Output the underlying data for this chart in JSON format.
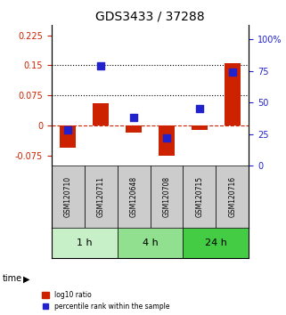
{
  "title": "GDS3433 / 37288",
  "samples": [
    "GSM120710",
    "GSM120711",
    "GSM120648",
    "GSM120708",
    "GSM120715",
    "GSM120716"
  ],
  "groups": [
    {
      "label": "1 h",
      "indices": [
        0,
        1
      ],
      "color": "#c8f0c8"
    },
    {
      "label": "4 h",
      "indices": [
        2,
        3
      ],
      "color": "#90e090"
    },
    {
      "label": "24 h",
      "indices": [
        4,
        5
      ],
      "color": "#44cc44"
    }
  ],
  "log10_ratio": [
    -0.055,
    0.055,
    -0.018,
    -0.075,
    -0.012,
    0.155
  ],
  "percentile_rank": [
    0.28,
    0.79,
    0.38,
    0.22,
    0.45,
    0.74
  ],
  "ylim_left": [
    -0.1,
    0.25
  ],
  "ylim_right": [
    0.0,
    1.111
  ],
  "yticks_left": [
    -0.075,
    0.0,
    0.075,
    0.15,
    0.225
  ],
  "ytick_labels_left": [
    "-0.075",
    "0",
    "0.075",
    "0.15",
    "0.225"
  ],
  "yticks_right": [
    0.0,
    0.25,
    0.5,
    0.75,
    1.0
  ],
  "ytick_labels_right": [
    "0",
    "25",
    "50",
    "75",
    "100%"
  ],
  "hlines": [
    0.075,
    0.15
  ],
  "bar_color": "#cc2200",
  "dot_color": "#2222cc",
  "zero_line_color": "#cc2200",
  "bar_width": 0.5,
  "sample_box_color": "#cccccc",
  "legend_bar_label": "log10 ratio",
  "legend_dot_label": "percentile rank within the sample"
}
